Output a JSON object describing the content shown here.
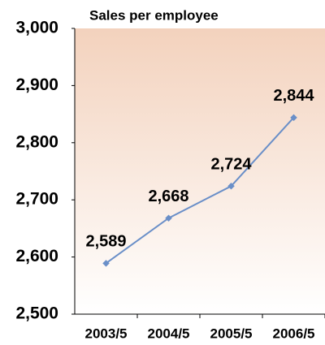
{
  "chart_data": {
    "type": "line",
    "title": "Sales per employee",
    "categories": [
      "2003/5",
      "2004/5",
      "2005/5",
      "2006/5"
    ],
    "series": [
      {
        "color": "#6a8fc8",
        "values": [
          2589,
          2668,
          2724,
          2844
        ],
        "value_labels": [
          "2,589",
          "2,668",
          "2,724",
          "2,844"
        ]
      }
    ],
    "ylim": [
      2500,
      3000
    ],
    "yticks": [
      {
        "value": 2500,
        "label": "2,500"
      },
      {
        "value": 2600,
        "label": "2,600"
      },
      {
        "value": 2700,
        "label": "2,700"
      },
      {
        "value": 2800,
        "label": "2,800"
      },
      {
        "value": 2900,
        "label": "2,900"
      },
      {
        "value": 3000,
        "label": "3,000"
      }
    ]
  }
}
